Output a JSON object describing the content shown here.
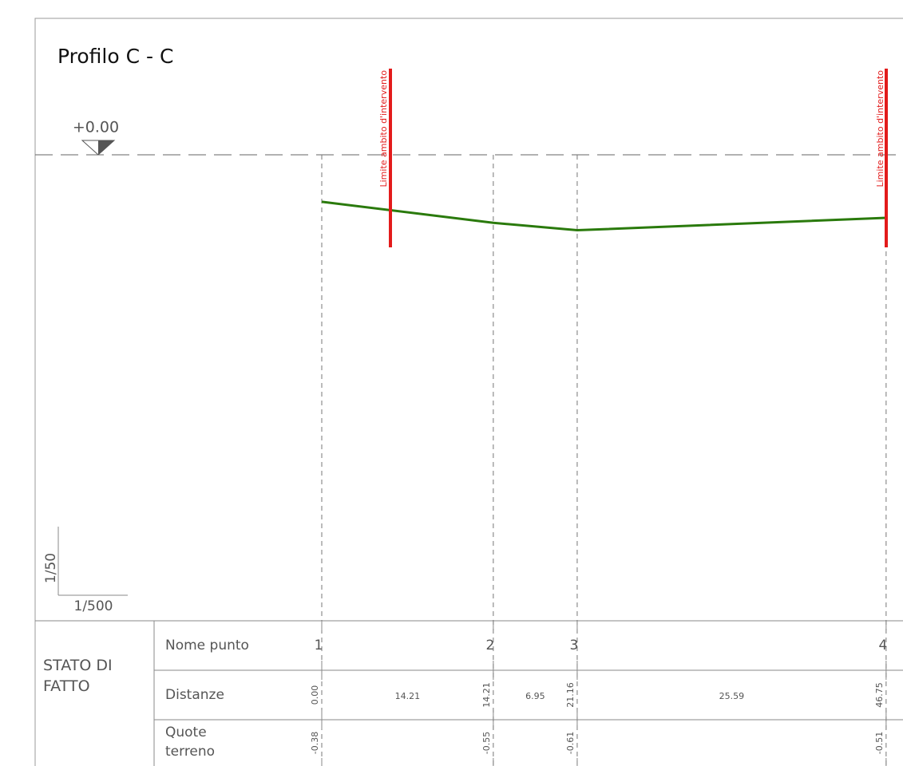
{
  "title": "Profilo C - C",
  "datum": "+0.00",
  "limit_label": "Limite ambito d'intervento",
  "scale": {
    "vertical": "1/50",
    "horizontal": "1/500"
  },
  "table": {
    "section": "STATO DI FATTO",
    "rows": [
      "Nome punto",
      "Distanze",
      "Quote\nterreno"
    ]
  },
  "points": [
    {
      "name": "1",
      "distance": {
        "value": 0,
        "label": "0.00"
      },
      "elevation": -0.38
    },
    {
      "name": "2",
      "distance": 14.21,
      "elevation": -0.55
    },
    {
      "name": "3",
      "distance": 21.16,
      "elevation": -0.61
    },
    {
      "name": "4",
      "distance": 46.75,
      "elevation": -0.51
    }
  ],
  "segments": [
    14.21,
    6.95,
    25.59
  ]
}
